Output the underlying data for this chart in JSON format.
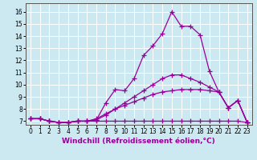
{
  "xlabel": "Windchill (Refroidissement éolien,°C)",
  "line_color": "#990099",
  "bg_color": "#cce8f0",
  "grid_color": "#ffffff",
  "xlim": [
    -0.5,
    23.5
  ],
  "ylim": [
    6.7,
    16.7
  ],
  "yticks": [
    7,
    8,
    9,
    10,
    11,
    12,
    13,
    14,
    15,
    16
  ],
  "xticks": [
    0,
    1,
    2,
    3,
    4,
    5,
    6,
    7,
    8,
    9,
    10,
    11,
    12,
    13,
    14,
    15,
    16,
    17,
    18,
    19,
    20,
    21,
    22,
    23
  ],
  "series": [
    [
      7.2,
      7.2,
      7.0,
      6.9,
      6.9,
      7.0,
      7.0,
      7.1,
      8.5,
      9.6,
      9.5,
      10.5,
      12.4,
      13.2,
      14.2,
      16.0,
      14.8,
      14.8,
      14.1,
      11.1,
      9.4,
      8.1,
      8.7,
      6.9
    ],
    [
      7.2,
      7.2,
      7.0,
      6.9,
      6.9,
      7.0,
      7.0,
      7.1,
      7.5,
      8.0,
      8.5,
      9.0,
      9.5,
      10.0,
      10.5,
      10.8,
      10.8,
      10.5,
      10.2,
      9.8,
      9.4,
      8.1,
      8.7,
      6.9
    ],
    [
      7.2,
      7.2,
      7.0,
      6.9,
      6.9,
      7.0,
      7.0,
      7.2,
      7.6,
      8.0,
      8.3,
      8.6,
      8.9,
      9.2,
      9.4,
      9.5,
      9.6,
      9.6,
      9.6,
      9.5,
      9.4,
      8.1,
      8.7,
      6.9
    ],
    [
      7.2,
      7.2,
      7.0,
      6.9,
      6.9,
      7.0,
      7.0,
      7.0,
      7.0,
      7.0,
      7.0,
      7.0,
      7.0,
      7.0,
      7.0,
      7.0,
      7.0,
      7.0,
      7.0,
      7.0,
      7.0,
      7.0,
      7.0,
      6.9
    ]
  ],
  "marker": "+",
  "markersize": 4,
  "linewidth": 0.9,
  "xlabel_fontsize": 6.5,
  "tick_fontsize": 5.5
}
